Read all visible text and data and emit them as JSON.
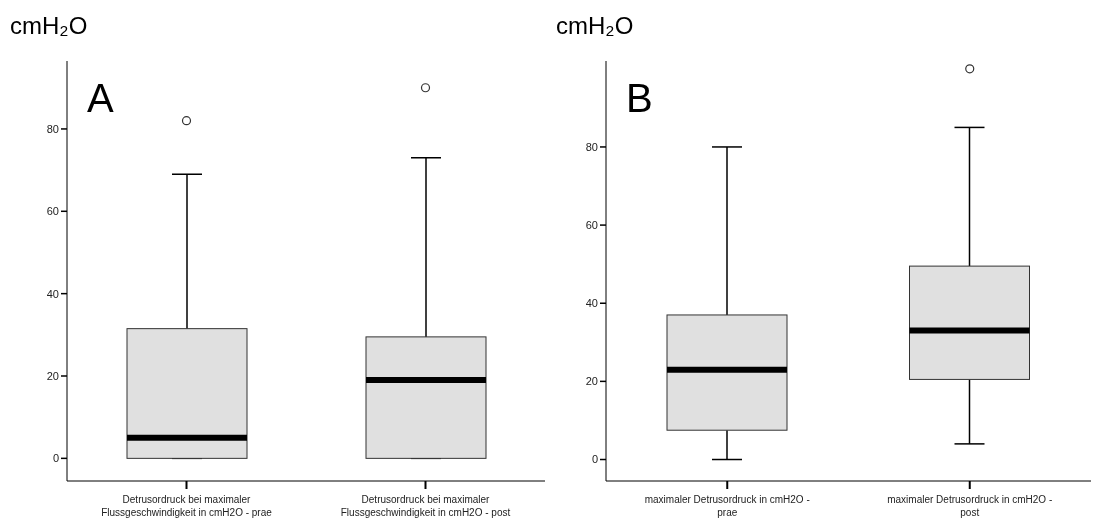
{
  "chart_data": [
    {
      "type": "box",
      "ylabel": "cmH₂O",
      "annotations": [
        "A"
      ],
      "categories": [
        "Detrusordruck bei maximaler Flussgeschwindigkeit in cmH2O - prae",
        "Detrusordruck bei maximaler Flussgeschwindigkeit in cmH2O - post"
      ],
      "series": [
        {
          "color": "#e0e0e0",
          "boxes": [
            {
              "low": 0,
              "q1": 0,
              "median": 5,
              "q3": 31.5,
              "high": 69,
              "outliers": [
                82
              ]
            },
            {
              "low": 0,
              "q1": 0,
              "median": 19,
              "q3": 29.5,
              "high": 73,
              "outliers": [
                90
              ]
            }
          ]
        }
      ],
      "ylim": [
        -5.5,
        96.5
      ],
      "yticks": [
        0,
        20,
        40,
        60,
        80
      ]
    },
    {
      "type": "box",
      "ylabel": "cmH₂O",
      "annotations": [
        "B"
      ],
      "categories": [
        "maximaler Detrusordruck in cmH2O - prae",
        "maximaler Detrusordruck in cmH2O - post"
      ],
      "series": [
        {
          "color": "#e0e0e0",
          "boxes": [
            {
              "low": 0,
              "q1": 7.5,
              "median": 23,
              "q3": 37,
              "high": 80
            },
            {
              "low": 4,
              "q1": 20.5,
              "median": 33,
              "q3": 49.5,
              "high": 85,
              "outliers": [
                100
              ]
            }
          ]
        }
      ],
      "ylim": [
        -5.5,
        102
      ],
      "yticks": [
        0,
        20,
        40,
        60,
        80
      ]
    }
  ]
}
